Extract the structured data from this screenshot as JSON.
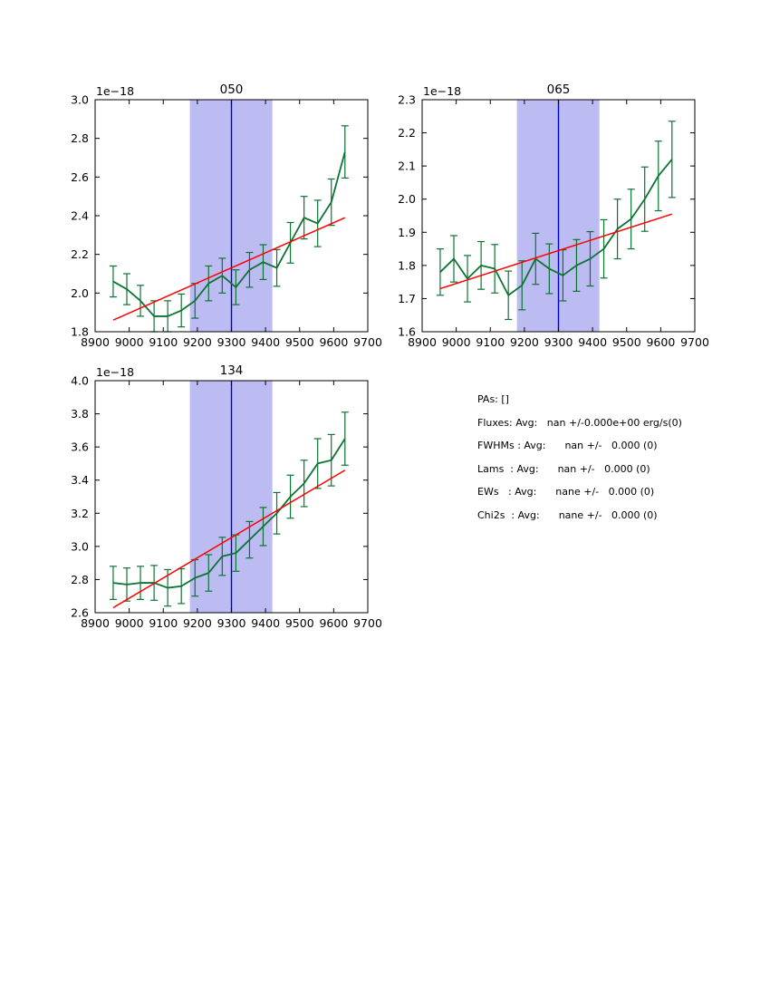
{
  "info": {
    "lines": [
      "PAs: []",
      "Fluxes: Avg:   nan +/-0.000e+00 erg/s(0)",
      "FWHMs : Avg:      nan +/-   0.000 (0)",
      "Lams  : Avg:      nan +/-   0.000 (0)",
      "EWs   : Avg:      nane +/-   0.000 (0)",
      "Chi2s  : Avg:      nane +/-   0.000 (0)"
    ]
  },
  "colors": {
    "series": "#0c7433",
    "fit": "#ff0000",
    "band": "#bcbcf2",
    "vline": "#0000cd",
    "axis": "#000000",
    "text": "#000000"
  },
  "chart_data": [
    {
      "type": "line",
      "title": "050",
      "offset_label": "1e−18",
      "xlabel": "",
      "ylabel": "",
      "grid": false,
      "xlim": [
        8900,
        9700
      ],
      "ylim": [
        1.8,
        3.0
      ],
      "xticks": [
        8900,
        9000,
        9100,
        9200,
        9300,
        9400,
        9500,
        9600,
        9700
      ],
      "yticks": [
        1.8,
        2.0,
        2.2,
        2.4,
        2.6,
        2.8,
        3.0
      ],
      "band": [
        9178,
        9420
      ],
      "vline": 9300,
      "x": [
        8953,
        8993,
        9033,
        9073,
        9113,
        9153,
        9193,
        9233,
        9273,
        9313,
        9353,
        9393,
        9433,
        9473,
        9513,
        9553,
        9593,
        9633
      ],
      "y": [
        2.06,
        2.02,
        1.96,
        1.88,
        1.88,
        1.91,
        1.96,
        2.05,
        2.09,
        2.03,
        2.12,
        2.16,
        2.13,
        2.26,
        2.39,
        2.36,
        2.47,
        2.73
      ],
      "yerr": [
        0.08,
        0.08,
        0.08,
        0.08,
        0.08,
        0.085,
        0.09,
        0.09,
        0.09,
        0.09,
        0.09,
        0.09,
        0.095,
        0.105,
        0.11,
        0.12,
        0.12,
        0.135
      ],
      "fit_line": {
        "x": [
          8953,
          9633
        ],
        "y": [
          1.86,
          2.39
        ]
      }
    },
    {
      "type": "line",
      "title": "065",
      "offset_label": "1e−18",
      "xlabel": "",
      "ylabel": "",
      "grid": false,
      "xlim": [
        8900,
        9700
      ],
      "ylim": [
        1.6,
        2.3
      ],
      "xticks": [
        8900,
        9000,
        9100,
        9200,
        9300,
        9400,
        9500,
        9600,
        9700
      ],
      "yticks": [
        1.6,
        1.7,
        1.8,
        1.9,
        2.0,
        2.1,
        2.2,
        2.3
      ],
      "band": [
        9178,
        9420
      ],
      "vline": 9300,
      "x": [
        8953,
        8993,
        9033,
        9073,
        9113,
        9153,
        9193,
        9233,
        9273,
        9313,
        9353,
        9393,
        9433,
        9473,
        9513,
        9553,
        9593,
        9633
      ],
      "y": [
        1.78,
        1.82,
        1.76,
        1.8,
        1.79,
        1.71,
        1.74,
        1.82,
        1.79,
        1.77,
        1.8,
        1.82,
        1.85,
        1.91,
        1.94,
        2.0,
        2.07,
        2.12
      ],
      "yerr": [
        0.07,
        0.07,
        0.07,
        0.072,
        0.073,
        0.073,
        0.074,
        0.077,
        0.075,
        0.077,
        0.078,
        0.082,
        0.088,
        0.09,
        0.09,
        0.097,
        0.105,
        0.115
      ],
      "fit_line": {
        "x": [
          8953,
          9633
        ],
        "y": [
          1.73,
          1.955
        ]
      }
    },
    {
      "type": "line",
      "title": "134",
      "offset_label": "1e−18",
      "xlabel": "",
      "ylabel": "",
      "grid": false,
      "xlim": [
        8900,
        9700
      ],
      "ylim": [
        2.6,
        4.0
      ],
      "xticks": [
        8900,
        9000,
        9100,
        9200,
        9300,
        9400,
        9500,
        9600,
        9700
      ],
      "yticks": [
        2.6,
        2.8,
        3.0,
        3.2,
        3.4,
        3.6,
        3.8,
        4.0
      ],
      "band": [
        9178,
        9420
      ],
      "vline": 9300,
      "x": [
        8953,
        8993,
        9033,
        9073,
        9113,
        9153,
        9193,
        9233,
        9273,
        9313,
        9353,
        9393,
        9433,
        9473,
        9513,
        9553,
        9593,
        9633
      ],
      "y": [
        2.78,
        2.77,
        2.78,
        2.78,
        2.75,
        2.76,
        2.81,
        2.84,
        2.94,
        2.96,
        3.04,
        3.12,
        3.2,
        3.3,
        3.38,
        3.5,
        3.52,
        3.65
      ],
      "yerr": [
        0.1,
        0.1,
        0.1,
        0.105,
        0.11,
        0.105,
        0.11,
        0.11,
        0.115,
        0.11,
        0.11,
        0.115,
        0.125,
        0.13,
        0.14,
        0.15,
        0.155,
        0.16
      ],
      "fit_line": {
        "x": [
          8953,
          9633
        ],
        "y": [
          2.63,
          3.46
        ]
      }
    }
  ]
}
